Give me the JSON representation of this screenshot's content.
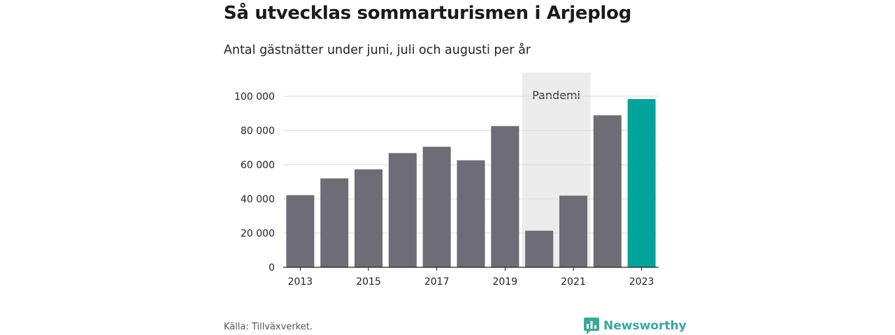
{
  "title": "Så utvecklas sommarturismen i Arjeplog",
  "subtitle": "Antal gästnätter under juni, juli och augusti per år",
  "source": "Källa: Tillväxverket.",
  "brand": {
    "name": "Newsworthy",
    "icon": "chart-logo-icon",
    "color": "#3aa89b"
  },
  "colors": {
    "bar": "#6e6d75",
    "highlight": "#00a49a",
    "shade": "#ececec",
    "grid": "#d9d9d9"
  },
  "chart_data": {
    "type": "bar",
    "categories": [
      "2013",
      "2014",
      "2015",
      "2016",
      "2017",
      "2018",
      "2019",
      "2020",
      "2021",
      "2022",
      "2023"
    ],
    "values": [
      42200,
      52000,
      57300,
      66800,
      70500,
      62600,
      82600,
      21400,
      41900,
      88900,
      98400
    ],
    "highlight_category": "2023",
    "x_tick_labels": [
      "2013",
      "2015",
      "2017",
      "2019",
      "2021",
      "2023"
    ],
    "y_ticks": [
      0,
      20000,
      40000,
      60000,
      80000,
      100000
    ],
    "y_tick_labels": [
      "0",
      "20 000",
      "40 000",
      "60 000",
      "80 000",
      "100 000"
    ],
    "ylim": [
      0,
      100000
    ],
    "grid": true,
    "annotation": {
      "label": "Pandemi",
      "categories": [
        "2020",
        "2021"
      ]
    }
  }
}
